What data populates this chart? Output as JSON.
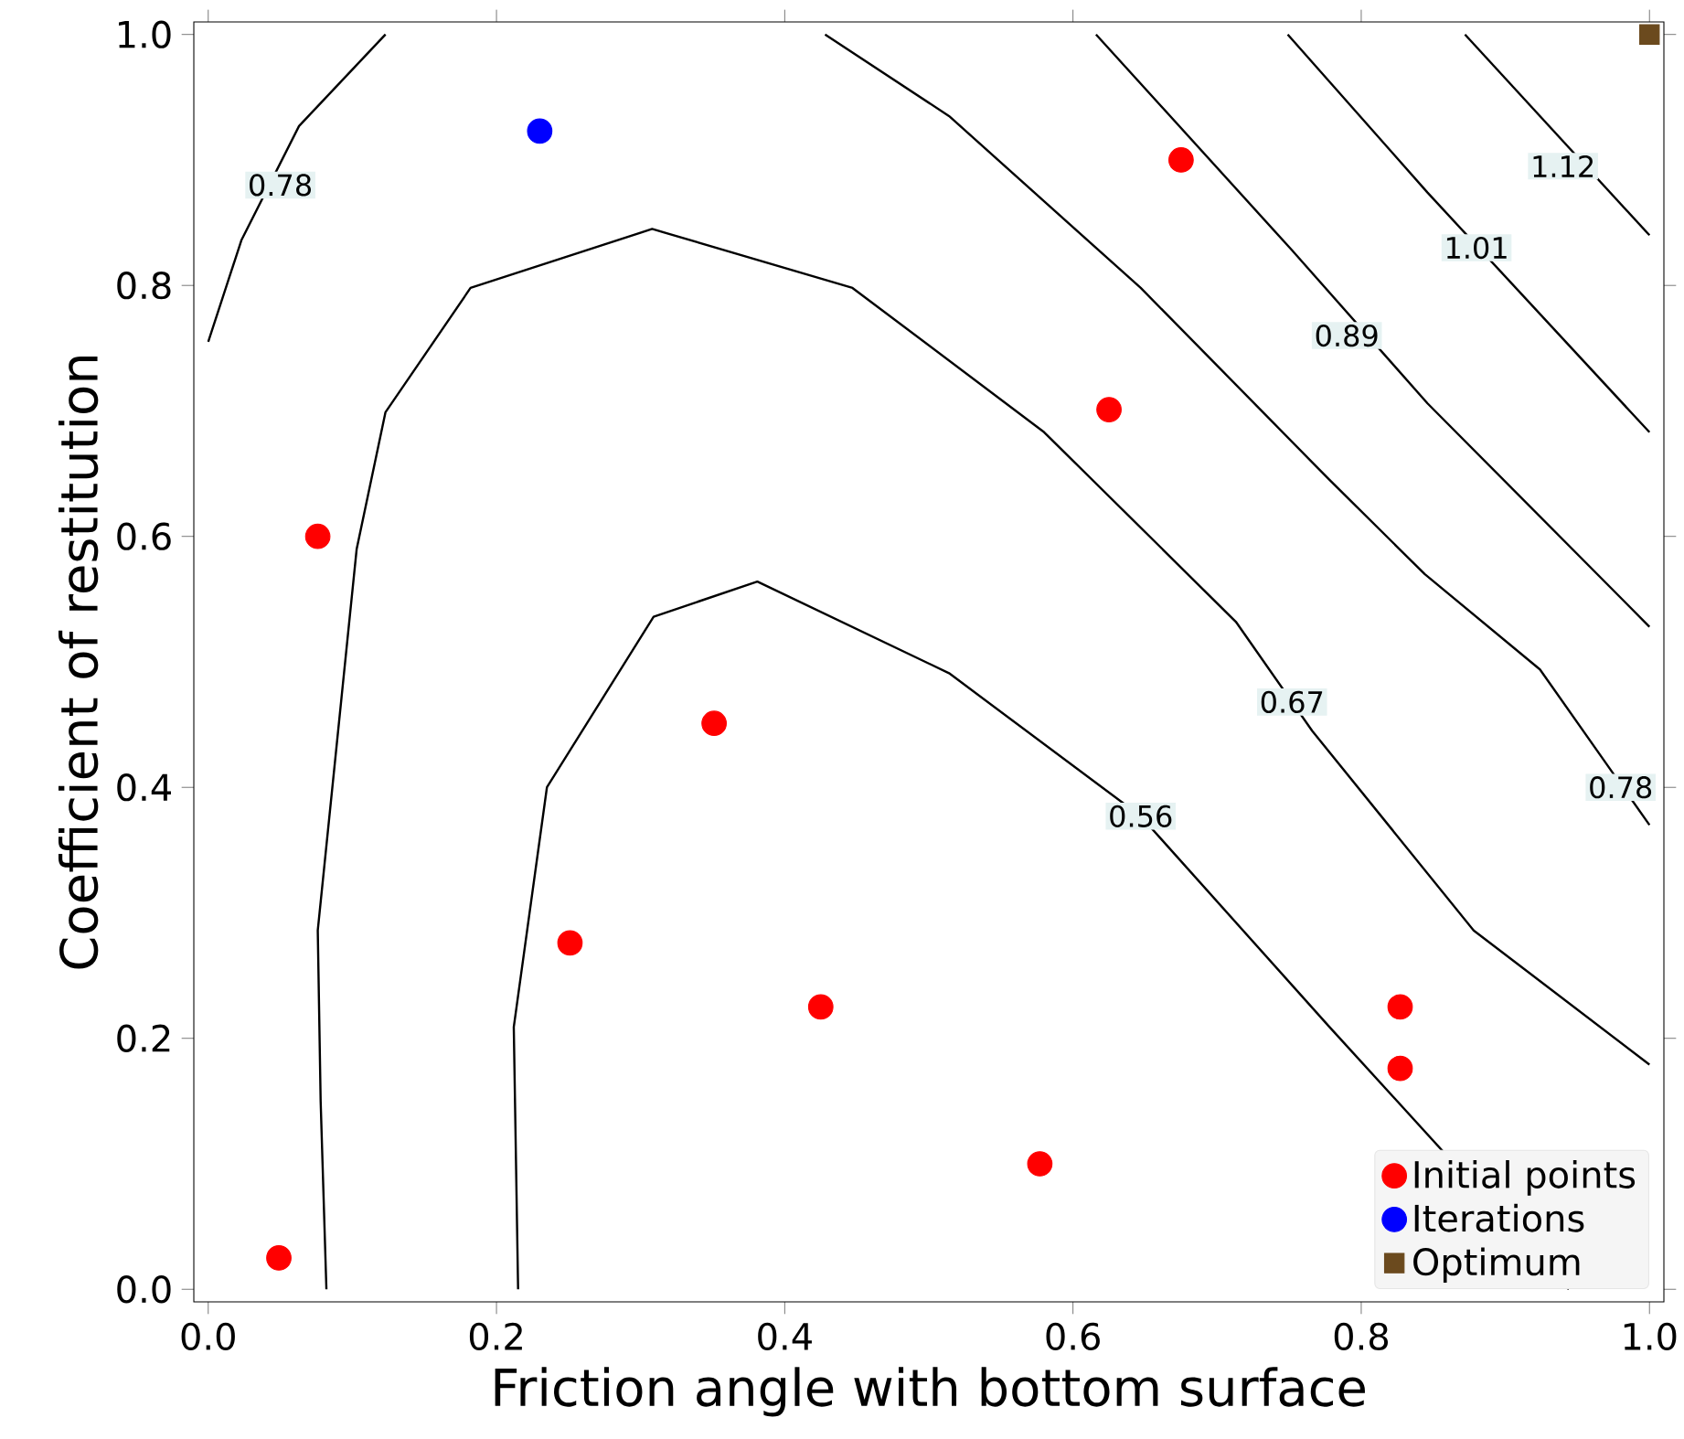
{
  "chart_data": {
    "type": "scatter",
    "xlabel": "Friction angle with bottom surface",
    "ylabel": "Coefficient of restitution",
    "xlim": [
      -0.01,
      1.01
    ],
    "ylim": [
      -0.01,
      1.01
    ],
    "xticks": [
      {
        "value": 0,
        "label": "0.0"
      },
      0.2,
      0.4,
      0.6,
      0.8,
      {
        "value": 1,
        "label": "1.0"
      }
    ],
    "yticks": [
      {
        "value": 0,
        "label": "0.0"
      },
      0.2,
      0.4,
      0.6,
      0.8,
      {
        "value": 1,
        "label": "1.0"
      }
    ],
    "legend": "bottom right",
    "grid": false,
    "series": [
      {
        "type": "line",
        "color": "#000000",
        "marker": "none",
        "x": [
          0.215,
          0.212,
          0.235,
          0.309,
          0.381,
          0.514,
          0.647,
          0.778,
          0.944
        ],
        "values": [
          0.0,
          0.209,
          0.4,
          0.536,
          0.564,
          0.491,
          0.377,
          0.209,
          0.0
        ]
      },
      {
        "type": "line",
        "color": "#000000",
        "marker": "none",
        "x": [
          0.082,
          0.078,
          0.076,
          0.103,
          0.123,
          0.182,
          0.308,
          0.447,
          0.58,
          0.713,
          0.766,
          0.878,
          1.0
        ],
        "values": [
          0.0,
          0.15,
          0.286,
          0.59,
          0.699,
          0.798,
          0.845,
          0.798,
          0.683,
          0.532,
          0.445,
          0.286,
          0.179
        ]
      },
      {
        "type": "line",
        "color": "#000000",
        "marker": "none",
        "x": [
          0.0,
          0.023,
          0.063,
          0.123
        ],
        "values": [
          0.755,
          0.836,
          0.927,
          1.0
        ]
      },
      {
        "type": "line",
        "color": "#000000",
        "marker": "none",
        "x": [
          0.428,
          0.514,
          0.647,
          0.778,
          0.844,
          0.924,
          1.0
        ],
        "values": [
          1.0,
          0.935,
          0.798,
          0.645,
          0.57,
          0.494,
          0.37
        ]
      },
      {
        "type": "line",
        "color": "#000000",
        "marker": "none",
        "x": [
          0.616,
          0.752,
          0.846,
          1.0
        ],
        "values": [
          1.0,
          0.828,
          0.706,
          0.528
        ]
      },
      {
        "type": "line",
        "color": "#000000",
        "marker": "none",
        "x": [
          0.749,
          0.846,
          1.0
        ],
        "values": [
          1.0,
          0.874,
          0.683
        ]
      },
      {
        "type": "line",
        "color": "#000000",
        "marker": "none",
        "x": [
          0.872,
          1.0
        ],
        "values": [
          1.0,
          0.84
        ]
      },
      {
        "name": "Initial points",
        "color": "#ff0000",
        "marker": "circle",
        "x": [
          0.049,
          0.076,
          0.251,
          0.351,
          0.425,
          0.577,
          0.625,
          0.675,
          0.827,
          0.827
        ],
        "values": [
          0.025,
          0.6,
          0.276,
          0.451,
          0.225,
          0.1,
          0.701,
          0.9,
          0.225,
          0.176
        ]
      },
      {
        "name": "Iterations",
        "color": "#0000ff",
        "marker": "circle",
        "x": [
          0.23
        ],
        "values": [
          0.923
        ]
      },
      {
        "name": "Optimum",
        "color": "#6b4a1e",
        "marker": "square",
        "x": [
          1.0
        ],
        "values": [
          1.0
        ]
      }
    ],
    "annotations": [
      {
        "text": "0.56",
        "x": 0.647,
        "y": 0.377
      },
      {
        "text": "0.67",
        "x": 0.752,
        "y": 0.468
      },
      {
        "text": "0.78",
        "x": 0.05,
        "y": 0.88
      },
      {
        "text": "0.78",
        "x": 0.98,
        "y": 0.4
      },
      {
        "text": "0.89",
        "x": 0.79,
        "y": 0.76
      },
      {
        "text": "1.01",
        "x": 0.88,
        "y": 0.83
      },
      {
        "text": "1.12",
        "x": 0.94,
        "y": 0.895
      }
    ]
  }
}
